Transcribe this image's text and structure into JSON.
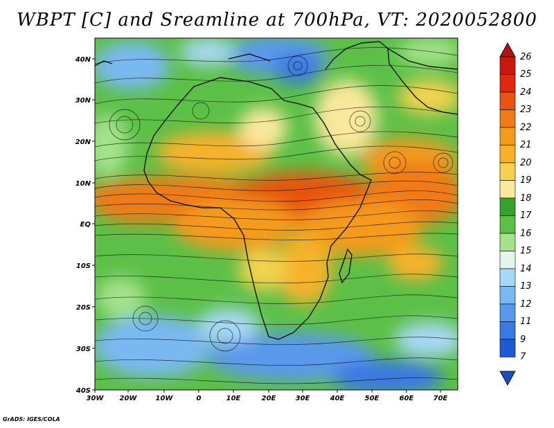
{
  "title": "WBPT [C] and Sreamline at 700hPa, VT: 2020052800",
  "lat_labels": [
    "40N",
    "30N",
    "20N",
    "10N",
    "EQ",
    "10S",
    "20S",
    "30S",
    "40S"
  ],
  "lon_labels": [
    "30W",
    "20W",
    "10W",
    "0",
    "10E",
    "20E",
    "30E",
    "40E",
    "50E",
    "60E",
    "70E"
  ],
  "colorbar": {
    "labels": [
      "26",
      "25",
      "24",
      "23",
      "22",
      "21",
      "20",
      "19",
      "18",
      "17",
      "16",
      "15",
      "14",
      "13",
      "12",
      "11",
      "9",
      "7"
    ],
    "colors": [
      "#b01212",
      "#c8180e",
      "#dc2a0a",
      "#e85410",
      "#f07a14",
      "#f49a1c",
      "#f6b22a",
      "#f4d24e",
      "#fae89c",
      "#38a030",
      "#5cc048",
      "#a4e28c",
      "#e2f6ee",
      "#a8d8f6",
      "#7ab8f2",
      "#5a98ec",
      "#3a78e2",
      "#1e5ad4",
      "#1a4cc2"
    ]
  },
  "footer": "GrADS: IGES/COLA"
}
